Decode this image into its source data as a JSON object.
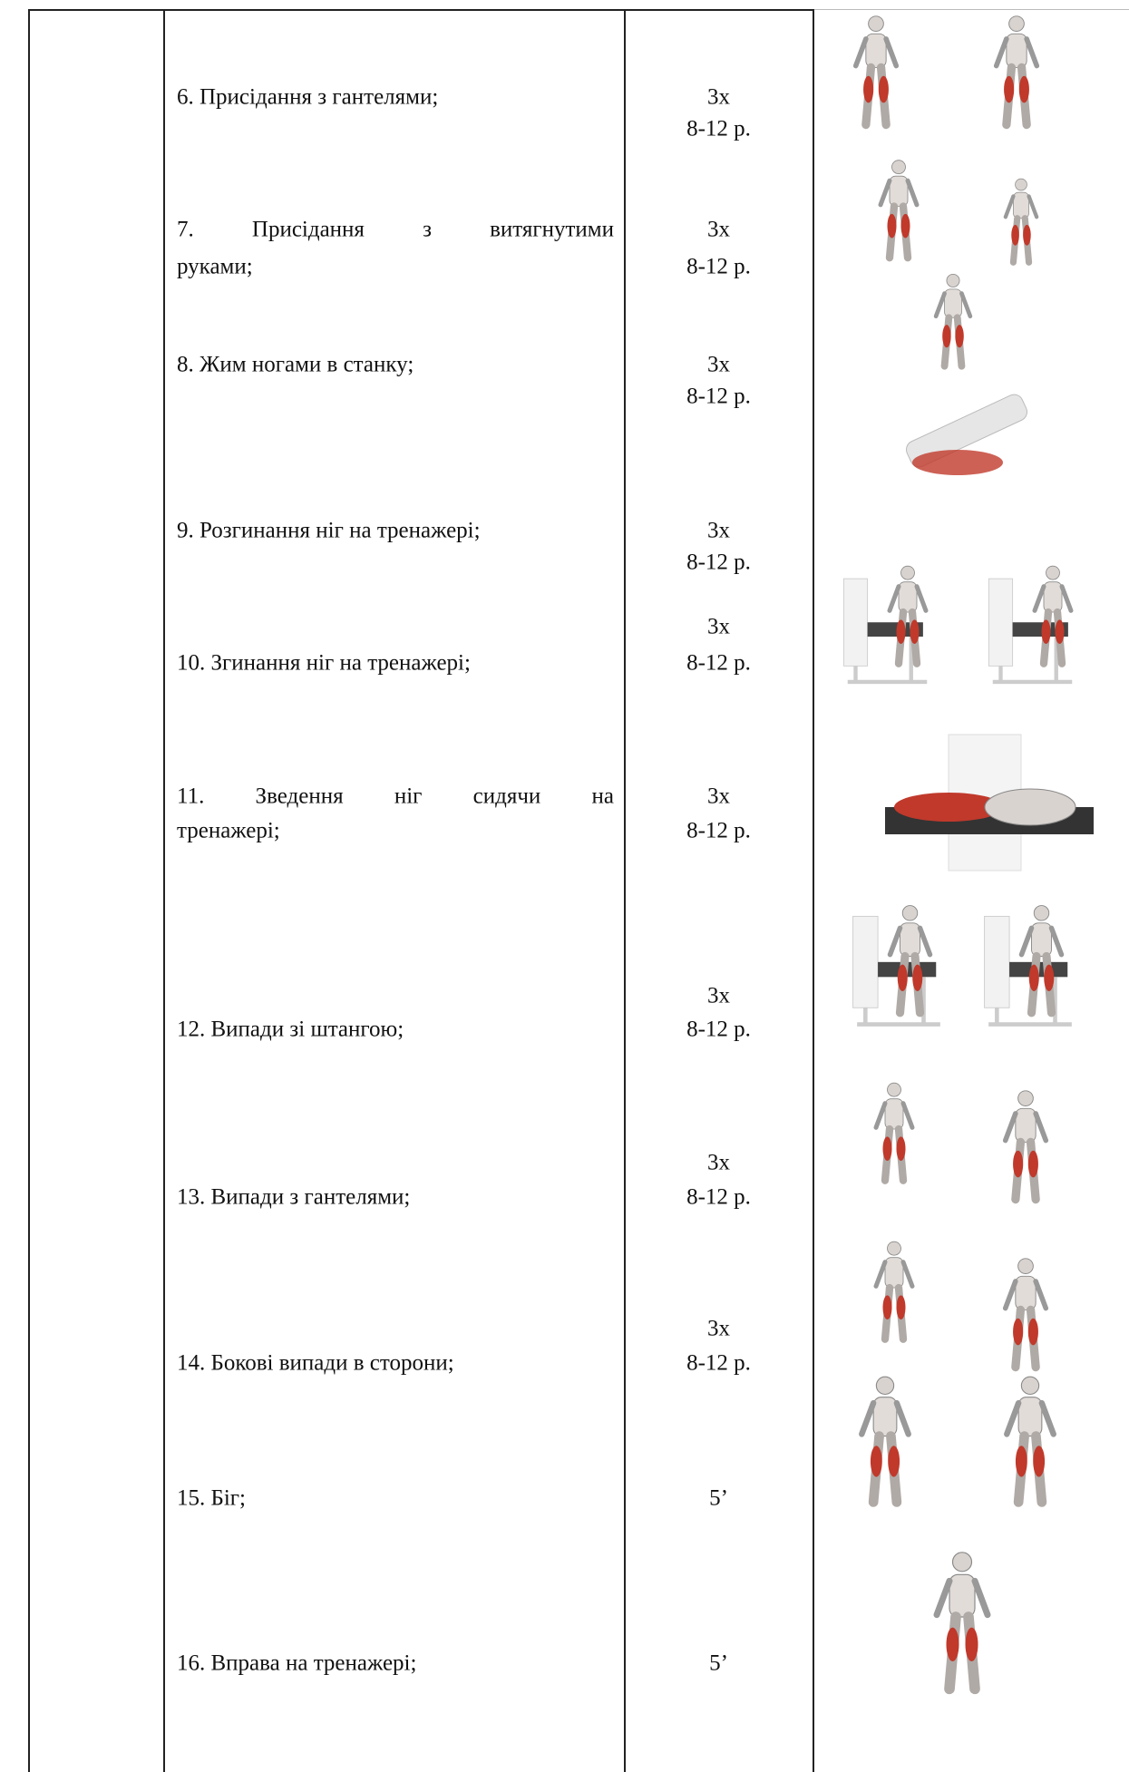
{
  "table": {
    "rows": [
      {
        "exercise": [
          "6. Присідання з гантелями;"
        ],
        "dose": [
          "3x",
          "8-12 р."
        ]
      },
      {
        "exercise": [
          "7. Присідання з витягнутими",
          "руками;"
        ],
        "dose": [
          "3x",
          "8-12 р."
        ]
      },
      {
        "exercise": [
          "8. Жим ногами в станку;"
        ],
        "dose": [
          "3x",
          "8-12 р."
        ]
      },
      {
        "exercise": [
          "9. Розгинання ніг на тренажері;"
        ],
        "dose": [
          "3x",
          "8-12 р."
        ]
      },
      {
        "exercise": [
          "10. Згинання ніг на тренажері;"
        ],
        "dose": [
          "3x",
          "8-12 р."
        ]
      },
      {
        "exercise": [
          "11. Зведення ніг сидячи на",
          "тренажері;"
        ],
        "dose": [
          "3x",
          "8-12 р."
        ]
      },
      {
        "exercise": [
          "12. Випади зі штангою;"
        ],
        "dose": [
          "3x",
          "8-12 р."
        ]
      },
      {
        "exercise": [
          "13. Випади з гантелями;"
        ],
        "dose": [
          "3x",
          "8-12 р."
        ]
      },
      {
        "exercise": [
          "14. Бокові випади в сторони;"
        ],
        "dose": [
          "3x",
          "8-12 р."
        ]
      },
      {
        "exercise": [
          "15. Біг;"
        ],
        "dose": [
          "5’"
        ]
      },
      {
        "exercise": [
          "16. Вправа на тренажері;"
        ],
        "dose": [
          "5’"
        ]
      }
    ]
  }
}
